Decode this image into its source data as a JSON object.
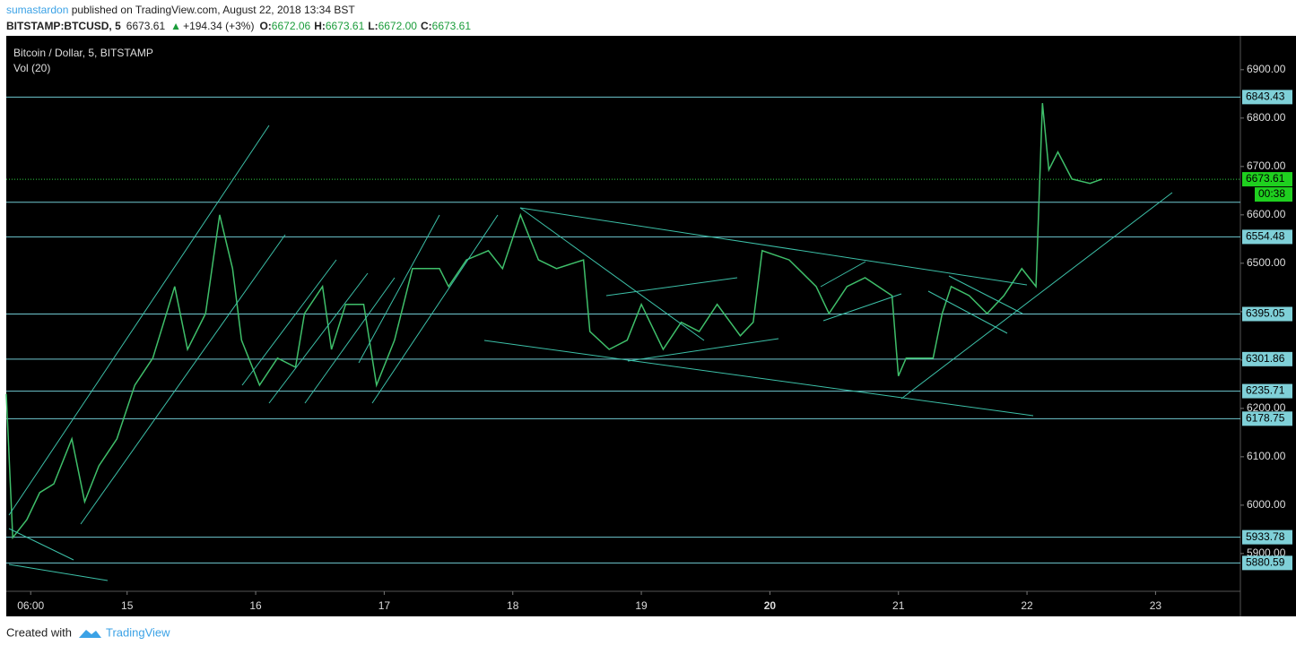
{
  "header": {
    "author": "sumastardon",
    "published": " published on TradingView.com, August 22, 2018 13:34 BST",
    "symbol": "BITSTAMP:BTCUSD, 5",
    "price": "6673.61",
    "arrow": "▲",
    "change": "+194.34 (+3%)",
    "open_label": "O:",
    "open": "6672.06",
    "high_label": "H:",
    "high": "6673.61",
    "low_label": "L:",
    "low": "6672.00",
    "close_label": "C:",
    "close": "6673.61"
  },
  "chart_data": {
    "type": "line",
    "title": "Bitcoin / Dollar, 5, BITSTAMP",
    "subtitle": "Vol (20)",
    "x": [
      14.06,
      14.11,
      14.22,
      14.32,
      14.43,
      14.57,
      14.67,
      14.78,
      14.92,
      15.06,
      15.2,
      15.37,
      15.47,
      15.61,
      15.72,
      15.82,
      15.89,
      16.03,
      16.17,
      16.31,
      16.38,
      16.52,
      16.59,
      16.7,
      16.84,
      16.94,
      17.08,
      17.22,
      17.43,
      17.5,
      17.64,
      17.81,
      17.92,
      18.06,
      18.2,
      18.34,
      18.55,
      18.6,
      18.75,
      18.89,
      19.0,
      19.17,
      19.31,
      19.45,
      19.59,
      19.77,
      19.87,
      19.94,
      20.15,
      20.36,
      20.46,
      20.6,
      20.74,
      20.95,
      21.0,
      21.06,
      21.27,
      21.34,
      21.41,
      21.55,
      21.69,
      21.82,
      21.96,
      22.07,
      22.12,
      22.17,
      22.24,
      22.35,
      22.49,
      22.58
    ],
    "series": [
      {
        "name": "BTCUSD",
        "color": "#3fbf6a",
        "values": [
          6230,
          5933,
          5970,
          6026,
          6044,
          6137,
          6007,
          6081,
          6137,
          6248,
          6304,
          6452,
          6322,
          6396,
          6600,
          6489,
          6341,
          6248,
          6304,
          6285,
          6396,
          6452,
          6322,
          6415,
          6415,
          6248,
          6341,
          6489,
          6489,
          6452,
          6507,
          6526,
          6489,
          6600,
          6507,
          6489,
          6507,
          6359,
          6322,
          6341,
          6415,
          6322,
          6378,
          6359,
          6415,
          6350,
          6378,
          6526,
          6507,
          6452,
          6396,
          6452,
          6470,
          6433,
          6267,
          6304,
          6304,
          6396,
          6452,
          6433,
          6396,
          6433,
          6489,
          6452,
          6831,
          6693,
          6730,
          6674,
          6665,
          6673.61
        ]
      }
    ],
    "levels": [
      6843.43,
      6554.48,
      6395.05,
      6301.86,
      6235.71,
      6178.75,
      5933.78,
      5880.59
    ],
    "levels_unlabeled": [
      6626
    ],
    "last_price": 6673.61,
    "countdown": "00:38",
    "xlim": [
      14.06,
      23.66
    ],
    "ylim": [
      5822,
      6970
    ],
    "xticks": [
      {
        "value": 14.25,
        "label": "06:00"
      },
      15,
      16,
      17,
      18,
      19,
      20,
      21,
      22,
      23
    ],
    "yticks": [
      {
        "value": 5900,
        "label": "5900.00"
      },
      {
        "value": 6000,
        "label": "6000.00"
      },
      {
        "value": 6100,
        "label": "6100.00"
      },
      {
        "value": 6200,
        "label": "6200.00"
      },
      {
        "value": 6300,
        "label": "6300.00"
      },
      {
        "value": 6400,
        "label": "6400.00"
      },
      {
        "value": 6500,
        "label": "6500.00"
      },
      {
        "value": 6600,
        "label": "6600.00"
      },
      {
        "value": 6700,
        "label": "6700.00"
      },
      {
        "value": 6800,
        "label": "6800.00"
      },
      {
        "value": 6900,
        "label": "6900.00"
      }
    ]
  },
  "footer": {
    "created": "Created with",
    "brand": "TradingView"
  }
}
